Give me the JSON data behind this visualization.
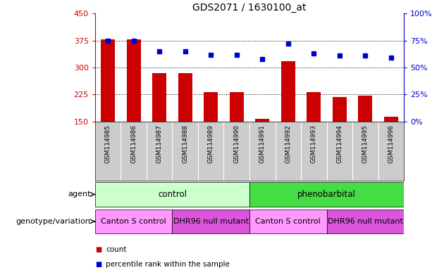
{
  "title": "GDS2071 / 1630100_at",
  "samples": [
    "GSM114985",
    "GSM114986",
    "GSM114987",
    "GSM114988",
    "GSM114989",
    "GSM114990",
    "GSM114991",
    "GSM114992",
    "GSM114993",
    "GSM114994",
    "GSM114995",
    "GSM114996"
  ],
  "counts": [
    378,
    378,
    284,
    285,
    232,
    232,
    158,
    318,
    232,
    218,
    222,
    163
  ],
  "percentiles": [
    75,
    75,
    65,
    65,
    62,
    62,
    58,
    72,
    63,
    61,
    61,
    59
  ],
  "ylim_left": [
    150,
    450
  ],
  "ylim_right": [
    0,
    100
  ],
  "yticks_left": [
    150,
    225,
    300,
    375,
    450
  ],
  "yticks_right": [
    0,
    25,
    50,
    75,
    100
  ],
  "ytick_labels_right": [
    "0%",
    "25%",
    "50%",
    "75%",
    "100%"
  ],
  "bar_color": "#cc0000",
  "dot_color": "#0000cc",
  "grid_color": "#000000",
  "agent_groups": [
    {
      "label": "control",
      "start": 0,
      "end": 6,
      "color": "#ccffcc"
    },
    {
      "label": "phenobarbital",
      "start": 6,
      "end": 12,
      "color": "#44dd44"
    }
  ],
  "genotype_groups": [
    {
      "label": "Canton S control",
      "start": 0,
      "end": 3,
      "color": "#ff99ff"
    },
    {
      "label": "DHR96 null mutant",
      "start": 3,
      "end": 6,
      "color": "#dd55dd"
    },
    {
      "label": "Canton S control",
      "start": 6,
      "end": 9,
      "color": "#ff99ff"
    },
    {
      "label": "DHR96 null mutant",
      "start": 9,
      "end": 12,
      "color": "#dd55dd"
    }
  ],
  "legend_count_color": "#cc0000",
  "legend_dot_color": "#0000cc",
  "count_label": "count",
  "percentile_label": "percentile rank within the sample",
  "agent_label": "agent",
  "genotype_label": "genotype/variation",
  "left_axis_color": "#cc0000",
  "right_axis_color": "#0000cc",
  "bg_color": "#ffffff",
  "xlabels_bg": "#cccccc",
  "separator_color": "#ffffff"
}
